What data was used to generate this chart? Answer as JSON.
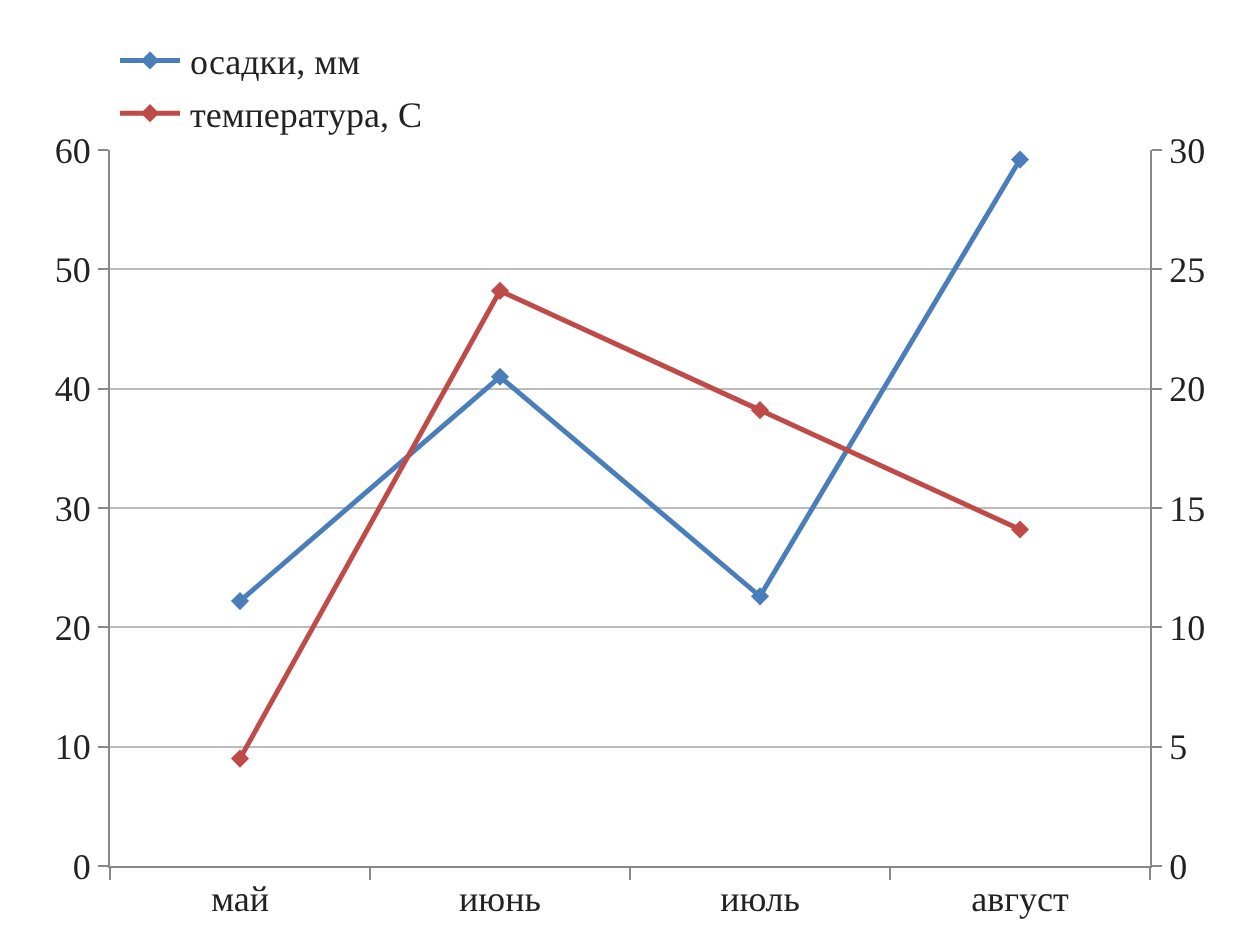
{
  "chart_data": {
    "type": "line",
    "categories": [
      "май",
      "июнь",
      "июль",
      "август"
    ],
    "series": [
      {
        "name": "осадки, мм",
        "color": "#4a7ebb",
        "values": [
          22.2,
          41,
          22.6,
          59.2
        ]
      },
      {
        "name": "температура, С",
        "color": "#be4b48",
        "values": [
          4.5,
          24.1,
          19.1,
          14.1
        ],
        "axis": "y2"
      }
    ],
    "ylim": [
      0,
      60
    ],
    "yticks": [
      0,
      10,
      20,
      30,
      40,
      50,
      60
    ],
    "y2lim": [
      0,
      30
    ],
    "y2ticks": [
      0,
      5,
      10,
      15,
      20,
      25,
      30
    ],
    "grid": "y",
    "legend": "top",
    "marker": "diamond",
    "line_style": "solid"
  }
}
